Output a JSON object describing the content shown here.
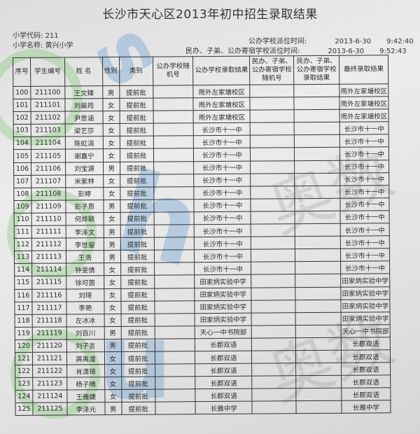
{
  "title": "长沙市天心区2013年初中招生录取结果",
  "school_code_label": "小学代码:",
  "school_code": "211",
  "school_name_label": "小学名称:",
  "school_name": "黄兴小学",
  "public_time_label": "公办学校派位时间:",
  "public_date": "2013-6-30",
  "public_time": "9:42:40",
  "private_time_label": "民办、子弟、公办寄宿学校派位时间:",
  "private_date": "2013-6-30",
  "private_time": "9:52:43",
  "columns": [
    "序号",
    "学生编号",
    "姓 名",
    "性别",
    "类别",
    "公办学校随机号",
    "公办学校录取结果",
    "民办、子弟、公办寄宿学校随机号",
    "民办、子弟、公办寄宿学校录取结果",
    "最终录取结果"
  ],
  "rows": [
    [
      "100",
      "211100",
      "王文臻",
      "男",
      "提前批",
      "",
      "雨外左家塘校区",
      "",
      "",
      "雨外左家塘校区"
    ],
    [
      "101",
      "211101",
      "刘晨筠",
      "女",
      "提前批",
      "",
      "雨外左家塘校区",
      "",
      "",
      "雨外左家塘校区"
    ],
    [
      "102",
      "211102",
      "尹思涵",
      "女",
      "提前批",
      "",
      "雨外左家塘校区",
      "",
      "",
      "雨外左家塘校区"
    ],
    [
      "103",
      "211103",
      "梁艺莎",
      "女",
      "提前批",
      "",
      "长沙市十一中",
      "",
      "",
      "长沙市十一中"
    ],
    [
      "104",
      "211104",
      "陈虹涓",
      "女",
      "提前批",
      "",
      "长沙市十一中",
      "",
      "",
      "长沙市十一中"
    ],
    [
      "105",
      "211105",
      "谢嘉宁",
      "女",
      "提前批",
      "",
      "长沙市十一中",
      "",
      "",
      "长沙市十一中"
    ],
    [
      "106",
      "211106",
      "刘宝源",
      "男",
      "提前批",
      "",
      "长沙市十一中",
      "",
      "",
      "长沙市十一中"
    ],
    [
      "107",
      "211107",
      "米紫林",
      "女",
      "提前批",
      "",
      "长沙市十一中",
      "",
      "",
      "长沙市十一中"
    ],
    [
      "108",
      "211108",
      "彭婷",
      "女",
      "提前批",
      "",
      "长沙市十一中",
      "",
      "",
      "长沙市十一中"
    ],
    [
      "109",
      "211109",
      "彭子恩",
      "男",
      "提前批",
      "",
      "长沙市十一中",
      "",
      "",
      "长沙市十一中"
    ],
    [
      "110",
      "211110",
      "何烨颖",
      "女",
      "提前批",
      "",
      "长沙市十一中",
      "",
      "",
      "长沙市十一中"
    ],
    [
      "111",
      "211111",
      "李泽文",
      "男",
      "提前批",
      "",
      "长沙市十一中",
      "",
      "",
      "长沙市十一中"
    ],
    [
      "112",
      "211112",
      "李世鋆",
      "男",
      "提前批",
      "",
      "长沙市十一中",
      "",
      "",
      "长沙市十一中"
    ],
    [
      "113",
      "211113",
      "王浩",
      "男",
      "提前批",
      "",
      "长沙市十一中",
      "",
      "",
      "长沙市十一中"
    ],
    [
      "114",
      "211114",
      "钟雯倩",
      "女",
      "提前批",
      "",
      "长沙市十一中",
      "",
      "",
      "长沙市十一中"
    ],
    [
      "115",
      "211115",
      "徐可茵",
      "女",
      "提前批",
      "",
      "田家炳实验中学",
      "",
      "",
      "田家炳实验中学"
    ],
    [
      "116",
      "211116",
      "刘琦",
      "女",
      "提前批",
      "",
      "田家炳实验中学",
      "",
      "",
      "田家炳实验中学"
    ],
    [
      "117",
      "211117",
      "李艳",
      "女",
      "提前批",
      "",
      "田家炳实验中学",
      "",
      "",
      "田家炳实验中学"
    ],
    [
      "118",
      "211118",
      "左冰冰",
      "女",
      "提前批",
      "",
      "田家炳实验中学",
      "",
      "",
      "田家炳实验中学"
    ],
    [
      "119",
      "211119",
      "刘百川",
      "男",
      "提前批",
      "",
      "天心一中书院部",
      "",
      "",
      "天心一中书院部"
    ],
    [
      "120",
      "211120",
      "刘子言",
      "男",
      "提前批",
      "",
      "长郡双语",
      "",
      "",
      "长郡双语"
    ],
    [
      "121",
      "211121",
      "龚禹潼",
      "女",
      "提前批",
      "",
      "长郡双语",
      "",
      "",
      "长郡双语"
    ],
    [
      "122",
      "211122",
      "肖潇琦",
      "女",
      "提前批",
      "",
      "长郡双语",
      "",
      "",
      "长郡双语"
    ],
    [
      "123",
      "211123",
      "杨子晴",
      "女",
      "提前批",
      "",
      "长郡双语",
      "",
      "",
      "长郡双语"
    ],
    [
      "124",
      "211124",
      "王雅婕",
      "女",
      "提前批",
      "",
      "长郡双语",
      "",
      "",
      "长郡双语"
    ],
    [
      "125",
      "211125",
      "李泽元",
      "男",
      "提前批",
      "",
      "长雅中学",
      "",
      "",
      "长雅中学"
    ]
  ]
}
